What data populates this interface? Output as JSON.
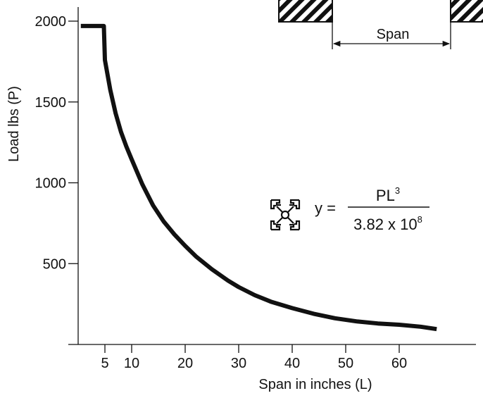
{
  "chart_data": {
    "type": "line",
    "title": "",
    "xlabel": "Span in inches (L)",
    "ylabel": "Load lbs (P)",
    "xlim": [
      0,
      74
    ],
    "ylim": [
      0,
      2150
    ],
    "x_ticks": [
      5,
      10,
      20,
      30,
      40,
      50,
      60
    ],
    "y_ticks": [
      500,
      1000,
      1500,
      2000
    ],
    "grid": false,
    "series": [
      {
        "x": [
          0.5,
          4.8,
          5,
          6,
          7,
          8,
          9,
          10,
          12,
          14,
          16,
          18,
          20,
          22,
          25,
          28,
          30,
          33,
          36,
          40,
          44,
          48,
          52,
          56,
          60,
          64,
          67
        ],
        "y": [
          1970,
          1970,
          1760,
          1575,
          1430,
          1315,
          1225,
          1145,
          990,
          860,
          760,
          680,
          610,
          545,
          465,
          395,
          355,
          305,
          265,
          225,
          190,
          162,
          143,
          130,
          122,
          110,
          95
        ]
      }
    ],
    "annotations": {
      "formula_lhs": "y =",
      "formula_num_base": "PL",
      "formula_num_exp": "3",
      "formula_den_base": "3.82 x 10",
      "formula_den_exp": "8",
      "span_label": "Span"
    },
    "colors": {
      "curve": "#111111",
      "axis": "#111111"
    },
    "icons": [
      "extrusion-profile-icon",
      "support-hatch-icon"
    ]
  }
}
